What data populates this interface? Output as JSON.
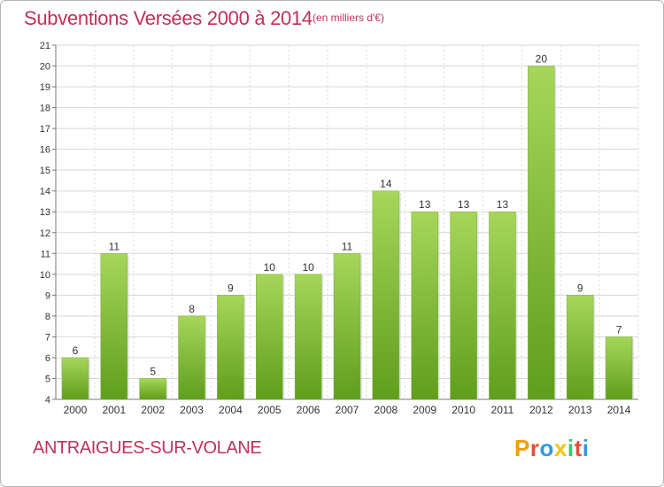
{
  "header": {
    "title": "Subventions Versées 2000 à 2014",
    "unit": "(en milliers d'€)"
  },
  "footer": {
    "commune": "ANTRAIGUES-SUR-VOLANE",
    "logo_letters": [
      "P",
      "r",
      "o",
      "x",
      "i",
      "t",
      "i"
    ],
    "logo_colors": [
      "#f39c12",
      "#e74c3c",
      "#3498db",
      "#f1c40f",
      "#2ecc71",
      "#e74c3c",
      "#3498db"
    ]
  },
  "colors": {
    "accent": "#c0305a",
    "bar_top": "#a6d65a",
    "bar_bottom": "#5f9e1c",
    "grid": "#d8d8d8",
    "axis_text": "#333333"
  },
  "chart_data": {
    "type": "bar",
    "title": "Subventions Versées 2000 à 2014",
    "subtitle": "(en milliers d'€)",
    "xlabel": "",
    "ylabel": "",
    "categories": [
      "2000",
      "2001",
      "2002",
      "2003",
      "2004",
      "2005",
      "2006",
      "2007",
      "2008",
      "2009",
      "2010",
      "2011",
      "2012",
      "2013",
      "2014"
    ],
    "values": [
      6,
      11,
      5,
      8,
      9,
      10,
      10,
      11,
      14,
      13,
      13,
      13,
      20,
      9,
      7
    ],
    "ylim": [
      4,
      21
    ],
    "yticks": [
      4,
      5,
      6,
      7,
      8,
      9,
      10,
      11,
      12,
      13,
      14,
      15,
      16,
      17,
      18,
      19,
      20,
      21
    ],
    "grid": true
  }
}
